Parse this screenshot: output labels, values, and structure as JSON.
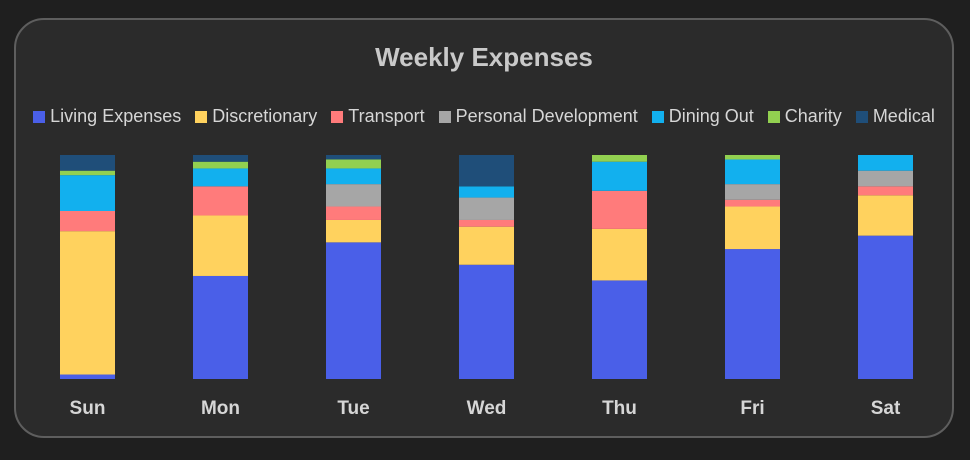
{
  "chart_data": {
    "type": "bar",
    "stacked": true,
    "normalized": true,
    "title": "Weekly Expenses",
    "xlabel": "",
    "ylabel": "",
    "ylim": [
      0,
      100
    ],
    "legend_position": "top",
    "grid": false,
    "categories": [
      "Sun",
      "Mon",
      "Tue",
      "Wed",
      "Thu",
      "Fri",
      "Sat"
    ],
    "series": [
      {
        "name": "Living Expenses",
        "color": "#4a5fe8",
        "values": [
          2,
          46,
          61,
          51,
          44,
          58,
          64
        ]
      },
      {
        "name": "Discretionary",
        "color": "#ffd25e",
        "values": [
          64,
          27,
          10,
          17,
          23,
          19,
          18
        ]
      },
      {
        "name": "Transport",
        "color": "#ff7b7b",
        "values": [
          9,
          13,
          6,
          3,
          17,
          3,
          4
        ]
      },
      {
        "name": "Personal Development",
        "color": "#a6a6a6",
        "values": [
          0,
          0,
          10,
          10,
          0,
          7,
          7
        ]
      },
      {
        "name": "Dining Out",
        "color": "#12b0ee",
        "values": [
          16,
          8,
          7,
          5,
          13,
          11,
          7
        ]
      },
      {
        "name": "Charity",
        "color": "#92d050",
        "values": [
          2,
          3,
          4,
          0,
          3,
          2,
          0
        ]
      },
      {
        "name": "Medical",
        "color": "#1f4e79",
        "values": [
          7,
          3,
          2,
          14,
          0,
          0,
          0
        ]
      }
    ]
  }
}
